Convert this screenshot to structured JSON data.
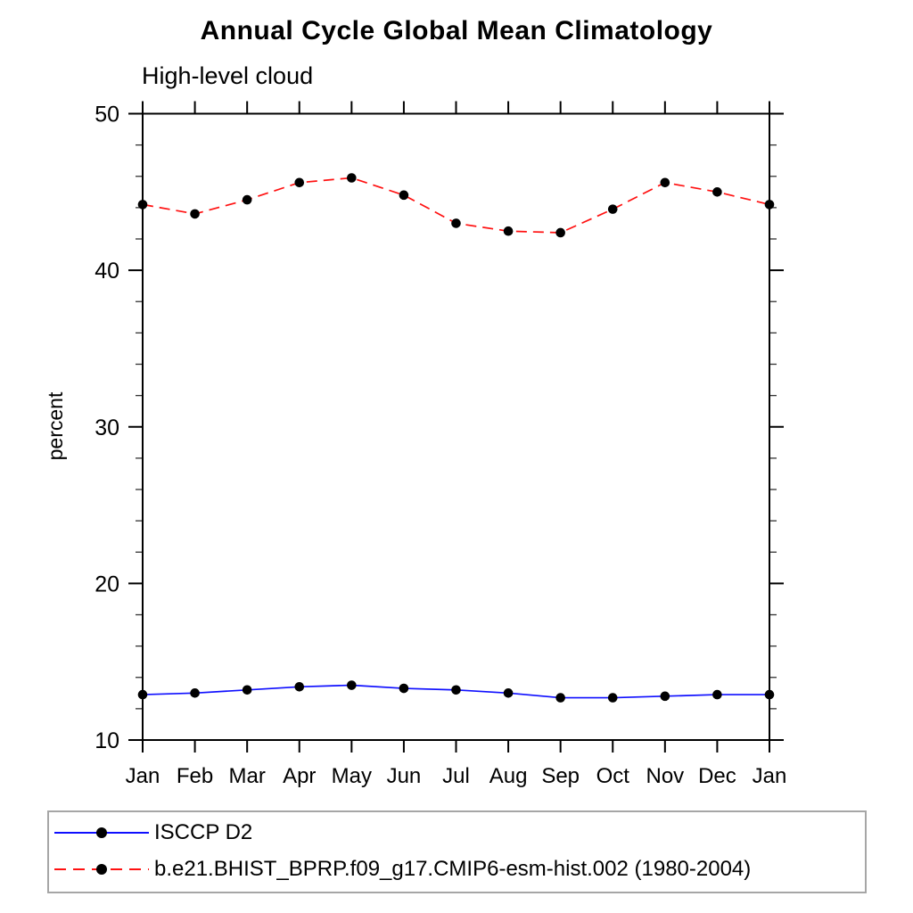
{
  "title": "Annual Cycle Global Mean Climatology",
  "subtitle": "High-level cloud",
  "ylabel": "percent",
  "legend": [
    {
      "label": "ISCCP D2",
      "color": "#0f0fff",
      "style": "solid"
    },
    {
      "label": "b.e21.BHIST_BPRP.f09_g17.CMIP6-esm-hist.002 (1980-2004)",
      "color": "#ff1111",
      "style": "dashed"
    }
  ],
  "colors": {
    "axis": "#000000",
    "marker": "#000000",
    "legend_border": "#a6a6a6"
  },
  "chart_data": {
    "type": "line",
    "title": "Annual Cycle Global Mean Climatology",
    "subtitle": "High-level cloud",
    "xlabel": "",
    "ylabel": "percent",
    "ylim": [
      10,
      50
    ],
    "yticks_major": [
      10,
      20,
      30,
      40,
      50
    ],
    "ytick_minor_step": 2,
    "grid": false,
    "marker": "filled-circle",
    "legend_position": "bottom-left-box",
    "categories": [
      "Jan",
      "Feb",
      "Mar",
      "Apr",
      "May",
      "Jun",
      "Jul",
      "Aug",
      "Sep",
      "Oct",
      "Nov",
      "Dec",
      "Jan"
    ],
    "series": [
      {
        "name": "ISCCP D2",
        "color": "#0f0fff",
        "style": "solid",
        "values": [
          12.9,
          13.0,
          13.2,
          13.4,
          13.5,
          13.3,
          13.2,
          13.0,
          12.7,
          12.7,
          12.8,
          12.9,
          12.9
        ]
      },
      {
        "name": "b.e21.BHIST_BPRP.f09_g17.CMIP6-esm-hist.002 (1980-2004)",
        "color": "#ff1111",
        "style": "dashed",
        "values": [
          44.2,
          43.6,
          44.5,
          45.6,
          45.9,
          44.8,
          43.0,
          42.5,
          42.4,
          43.9,
          45.6,
          45.0,
          44.2
        ]
      }
    ]
  }
}
